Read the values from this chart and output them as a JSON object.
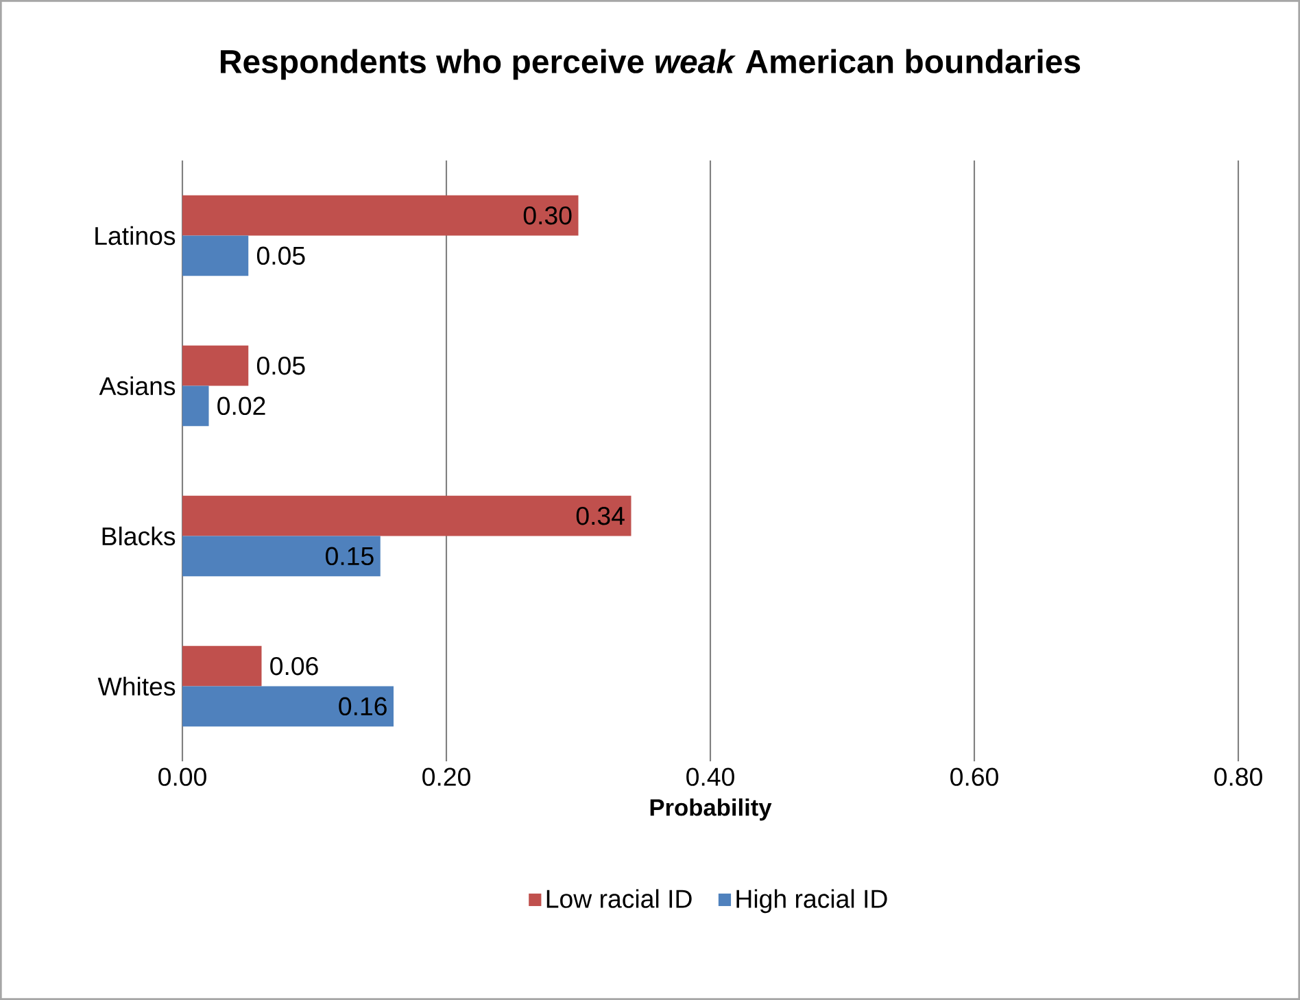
{
  "chart_data": {
    "type": "bar",
    "orientation": "horizontal",
    "title": "Respondents who perceive *weak* American boundaries",
    "xlabel": "Probability",
    "categories": [
      "Latinos",
      "Asians",
      "Blacks",
      "Whites"
    ],
    "series": [
      {
        "name": "Low racial ID",
        "color": "#c0504d",
        "values": [
          0.3,
          0.05,
          0.34,
          0.06
        ],
        "value_labels": [
          "0.30",
          "0.05",
          "0.34",
          "0.06"
        ]
      },
      {
        "name": "High racial ID",
        "color": "#4f81bd",
        "values": [
          0.05,
          0.02,
          0.15,
          0.16
        ],
        "value_labels": [
          "0.05",
          "0.02",
          "0.15",
          "0.16"
        ]
      }
    ],
    "xlim": [
      0,
      0.8
    ],
    "xticks": [
      {
        "value": 0,
        "label": "0.00"
      },
      {
        "value": 0.2,
        "label": "0.20"
      },
      {
        "value": 0.4,
        "label": "0.40"
      },
      {
        "value": 0.6,
        "label": "0.60"
      },
      {
        "value": 0.8,
        "label": "0.80"
      }
    ],
    "grid": "x",
    "legend": "bottom"
  }
}
